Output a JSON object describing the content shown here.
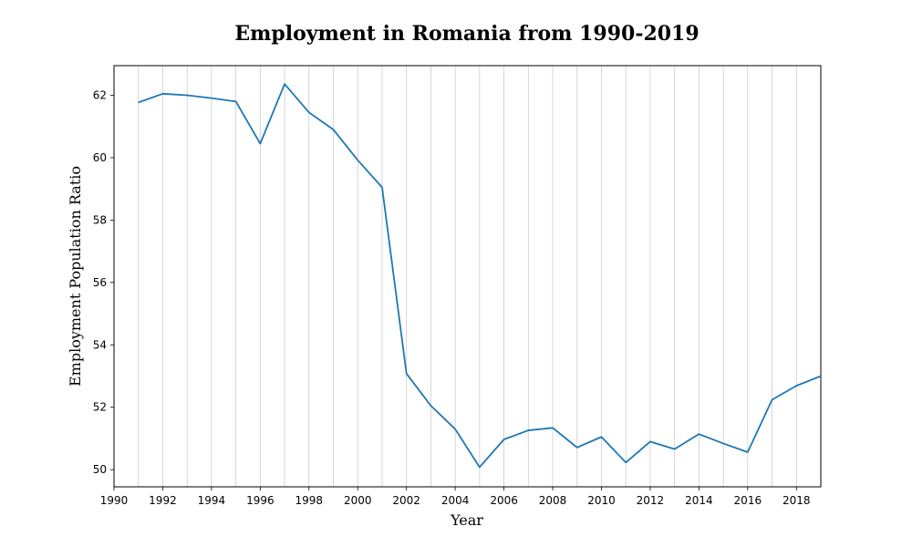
{
  "chart_data": {
    "type": "line",
    "title": "Employment in Romania from 1990-2019",
    "xlabel": "Year",
    "ylabel": "Employment Population Ratio",
    "xlim": [
      1990,
      2019
    ],
    "ylim": [
      49.45,
      62.95
    ],
    "x_ticks": [
      1990,
      1992,
      1994,
      1996,
      1998,
      2000,
      2002,
      2004,
      2006,
      2008,
      2010,
      2012,
      2014,
      2016,
      2018
    ],
    "y_ticks": [
      50,
      52,
      54,
      56,
      58,
      60,
      62
    ],
    "grid": "vertical",
    "color": "#1f77b4",
    "x": [
      1991,
      1992,
      1993,
      1994,
      1995,
      1996,
      1997,
      1998,
      1999,
      2000,
      2001,
      2002,
      2003,
      2004,
      2005,
      2006,
      2007,
      2008,
      2009,
      2010,
      2011,
      2012,
      2013,
      2014,
      2015,
      2016,
      2017,
      2018,
      2019
    ],
    "values": [
      61.77,
      62.05,
      62.0,
      61.91,
      61.8,
      60.45,
      62.36,
      61.45,
      60.9,
      59.92,
      59.05,
      53.08,
      52.05,
      51.3,
      50.08,
      50.97,
      51.26,
      51.34,
      50.71,
      51.05,
      50.23,
      50.9,
      50.66,
      51.14,
      50.84,
      50.56,
      52.24,
      52.69,
      53.0
    ]
  }
}
